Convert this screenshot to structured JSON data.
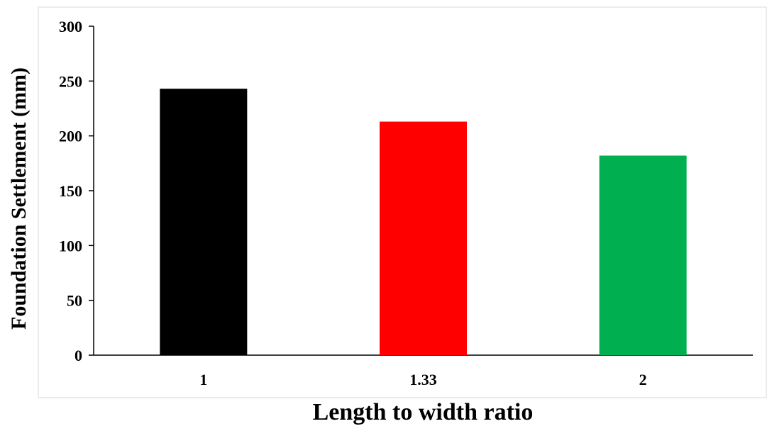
{
  "chart_data": {
    "type": "bar",
    "title": "",
    "xlabel": "Length to width ratio",
    "ylabel": "Foundation Settlement (mm)",
    "categories": [
      "1",
      "1.33",
      "2"
    ],
    "values": [
      243,
      213,
      182
    ],
    "colors": [
      "#000000",
      "#ff0000",
      "#00b050"
    ],
    "ylim": [
      0,
      300
    ],
    "yticks": [
      0,
      50,
      100,
      150,
      200,
      250,
      300
    ],
    "grid": false,
    "legend": "none"
  }
}
